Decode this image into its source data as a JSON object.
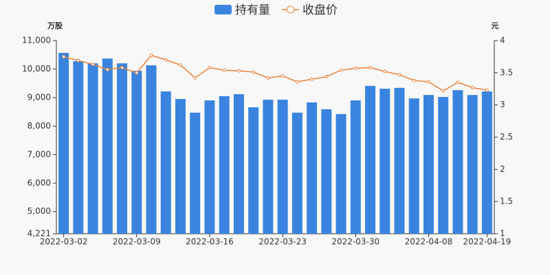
{
  "chart_data": {
    "type": "bar-line",
    "y_label": "万股",
    "y2_label": "元",
    "categories": [
      "2022-03-02",
      null,
      null,
      null,
      null,
      "2022-03-09",
      null,
      null,
      null,
      null,
      "2022-03-16",
      null,
      null,
      null,
      null,
      "2022-03-23",
      null,
      null,
      null,
      null,
      "2022-03-30",
      null,
      null,
      null,
      null,
      "2022-04-08",
      null,
      null,
      null,
      "2022-04-19"
    ],
    "series": [
      {
        "name": "持有量",
        "type": "bar",
        "color": "#3a84e0",
        "values": [
          10566,
          10276,
          10200,
          10370,
          10200,
          9940,
          10130,
          9215,
          8950,
          8470,
          8900,
          9050,
          9120,
          8660,
          8925,
          8925,
          8470,
          8830,
          8590,
          8420,
          8900,
          9410,
          9310,
          9340,
          8970,
          9090,
          9020,
          9260,
          9090,
          9215
        ]
      },
      {
        "name": "收盘价",
        "type": "line",
        "axis": "y2",
        "color": "#e8813a",
        "values": [
          3.75,
          3.69,
          3.63,
          3.55,
          3.58,
          3.5,
          3.77,
          3.7,
          3.62,
          3.42,
          3.58,
          3.54,
          3.53,
          3.51,
          3.42,
          3.45,
          3.36,
          3.4,
          3.44,
          3.54,
          3.57,
          3.58,
          3.52,
          3.47,
          3.38,
          3.36,
          3.22,
          3.35,
          3.27,
          3.23
        ]
      }
    ],
    "ylim": [
      4221,
      11000
    ],
    "yticks": [
      {
        "value": 4221,
        "label": "4,221"
      },
      {
        "value": 5000,
        "label": "5,000"
      },
      {
        "value": 6000,
        "label": "6,000"
      },
      {
        "value": 7000,
        "label": "7,000"
      },
      {
        "value": 8000,
        "label": "8,000"
      },
      {
        "value": 9000,
        "label": "9,000"
      },
      {
        "value": 10000,
        "label": "10,000"
      },
      {
        "value": 11000,
        "label": "11,000"
      }
    ],
    "y2lim": [
      1,
      4
    ],
    "y2ticks": [
      1,
      1.5,
      2,
      2.5,
      3,
      3.5,
      4
    ],
    "grid": false
  }
}
